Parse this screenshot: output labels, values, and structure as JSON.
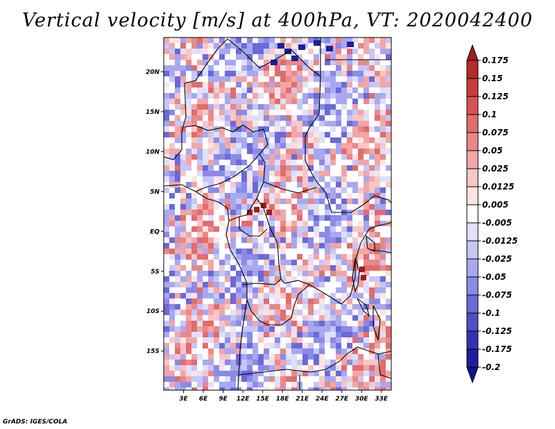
{
  "title": "Vertical velocity [m/s] at 400hPa, VT: 2020042400",
  "credit": "GrADS: IGES/COLA",
  "lat_labels": [
    "20N",
    "15N",
    "10N",
    "5N",
    "EQ",
    "5S",
    "10S",
    "15S"
  ],
  "lat_values": [
    20,
    15,
    10,
    5,
    0,
    -5,
    -10,
    -15
  ],
  "lon_labels": [
    "3E",
    "6E",
    "9E",
    "12E",
    "15E",
    "18E",
    "21E",
    "24E",
    "27E",
    "30E",
    "33E"
  ],
  "lon_values": [
    3,
    6,
    9,
    12,
    15,
    18,
    21,
    24,
    27,
    30,
    33
  ],
  "lon_range": [
    0,
    34.5
  ],
  "lat_range": [
    -19.9,
    24.3
  ],
  "colorbar": {
    "labels": [
      "0.175",
      "0.15",
      "0.125",
      "0.1",
      "0.075",
      "0.05",
      "0.025",
      "0.0125",
      "0.005",
      "-0.005",
      "-0.0125",
      "-0.025",
      "-0.05",
      "-0.075",
      "-0.1",
      "-0.125",
      "-0.175",
      "-0.2"
    ],
    "colors": [
      "#a01c1c",
      "#b52a2a",
      "#c83c3c",
      "#d85454",
      "#e26c6c",
      "#ea8888",
      "#f2a6a6",
      "#f8c6c6",
      "#fce4e4",
      "#ffffff",
      "#e0e0fc",
      "#c6c6f8",
      "#a8a8f0",
      "#8a8ae8",
      "#6a6ad8",
      "#4e4ec6",
      "#3434b2",
      "#1e1e9c",
      "#12128a"
    ]
  }
}
